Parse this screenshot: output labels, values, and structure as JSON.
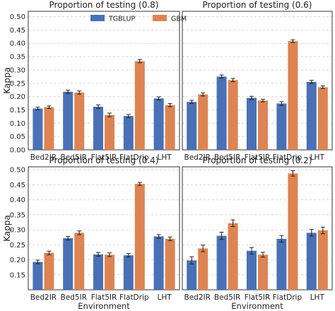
{
  "colors": {
    "tgblup": "#4a70b5",
    "gbm": "#dd8452",
    "grid": "#cfcfcf",
    "axis": "#333333",
    "error": "#222222"
  },
  "chart_data": [
    {
      "type": "bar",
      "title": "Proportion of testing (0.8)",
      "categories": [
        "Bed2IR",
        "Bed5IR",
        "Flat5IR",
        "FlatDrip",
        "LHT"
      ],
      "series": [
        {
          "name": "TGBLUP",
          "values": [
            0.155,
            0.218,
            0.162,
            0.127,
            0.193
          ],
          "errors": [
            0.005,
            0.006,
            0.007,
            0.006,
            0.006
          ]
        },
        {
          "name": "GBM",
          "values": [
            0.16,
            0.215,
            0.131,
            0.333,
            0.168
          ],
          "errors": [
            0.005,
            0.006,
            0.007,
            0.006,
            0.006
          ]
        }
      ],
      "ylim": [
        0,
        0.52
      ],
      "yticks": [
        "0.00",
        "0.05",
        "0.10",
        "0.15",
        "0.20",
        "0.25",
        "0.30",
        "0.35",
        "0.40",
        "0.45",
        "0.50"
      ],
      "ylabel": "Kappa",
      "xlabel": "",
      "legend": "top-center",
      "grid": true
    },
    {
      "type": "bar",
      "title": "Proportion of testing (0.6)",
      "categories": [
        "Bed2IR",
        "Bed5IR",
        "Flat5IR",
        "FlatDrip",
        "LHT"
      ],
      "series": [
        {
          "name": "TGBLUP",
          "values": [
            0.18,
            0.275,
            0.195,
            0.174,
            0.255
          ],
          "errors": [
            0.006,
            0.006,
            0.006,
            0.007,
            0.006
          ]
        },
        {
          "name": "GBM",
          "values": [
            0.208,
            0.262,
            0.185,
            0.408,
            0.235
          ],
          "errors": [
            0.006,
            0.006,
            0.005,
            0.005,
            0.005
          ]
        }
      ],
      "ylim": [
        0,
        0.52
      ],
      "yticks": [],
      "ylabel": "",
      "xlabel": "",
      "grid": true
    },
    {
      "type": "bar",
      "title": "Proportion of testing (0.4)",
      "categories": [
        "Bed2IR",
        "Bed5IR",
        "Flat5IR",
        "FlatDrip",
        "LHT"
      ],
      "series": [
        {
          "name": "TGBLUP",
          "values": [
            0.193,
            0.272,
            0.218,
            0.215,
            0.278
          ],
          "errors": [
            0.006,
            0.006,
            0.006,
            0.006,
            0.006
          ]
        },
        {
          "name": "GBM",
          "values": [
            0.223,
            0.29,
            0.217,
            0.453,
            0.27
          ],
          "errors": [
            0.006,
            0.006,
            0.006,
            0.005,
            0.006
          ]
        }
      ],
      "ylim": [
        0.1,
        0.51
      ],
      "yticks": [
        "0.15",
        "0.20",
        "0.25",
        "0.30",
        "0.35",
        "0.40",
        "0.45",
        "0.50"
      ],
      "ylabel": "Kappa",
      "xlabel": "Environment",
      "grid": true
    },
    {
      "type": "bar",
      "title": "Proportion of testing (0.2)",
      "categories": [
        "Bed2IR",
        "Bed5IR",
        "Flat5IR",
        "FlatDrip",
        "LHT"
      ],
      "series": [
        {
          "name": "TGBLUP",
          "values": [
            0.198,
            0.28,
            0.23,
            0.27,
            0.29
          ],
          "errors": [
            0.012,
            0.012,
            0.011,
            0.011,
            0.011
          ]
        },
        {
          "name": "GBM",
          "values": [
            0.238,
            0.322,
            0.217,
            0.488,
            0.298
          ],
          "errors": [
            0.011,
            0.011,
            0.008,
            0.009,
            0.011
          ]
        }
      ],
      "ylim": [
        0.1,
        0.51
      ],
      "yticks": [],
      "ylabel": "",
      "xlabel": "Environment",
      "grid": true
    }
  ]
}
